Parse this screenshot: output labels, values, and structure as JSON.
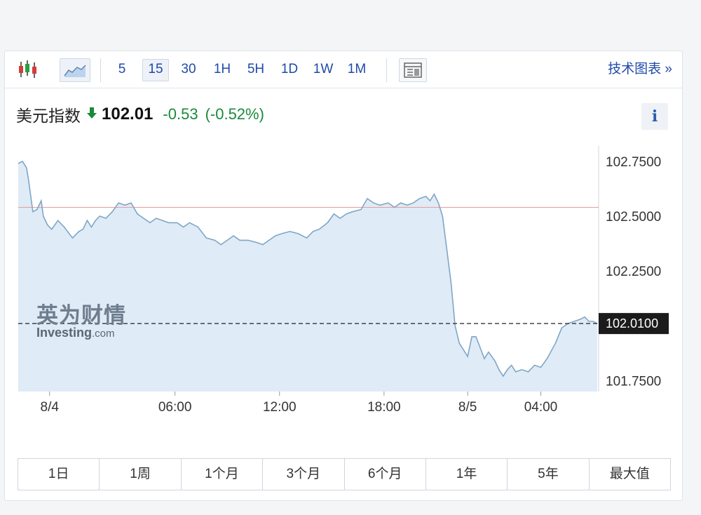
{
  "toolbar": {
    "intervals": [
      "5",
      "15",
      "30",
      "1H",
      "5H",
      "1D",
      "1W",
      "1M"
    ],
    "active_interval": "15",
    "tech_chart_label": "技术图表 »",
    "icons": [
      "candlestick-icon",
      "area-chart-icon",
      "table-icon"
    ]
  },
  "quote": {
    "name": "美元指数",
    "price": "102.01",
    "change": "-0.53",
    "change_pct": "(-0.52%)",
    "direction": "down",
    "info_label": "i"
  },
  "watermark": {
    "cn": "英为财情",
    "en": "Investing",
    "en_suffix": ".com"
  },
  "ranges": [
    "1日",
    "1周",
    "1个月",
    "3个月",
    "6个月",
    "1年",
    "5年",
    "最大值"
  ],
  "colors": {
    "up_green": "#1a8a3c",
    "link_blue": "#1f4aa8",
    "line": "#7fa6c6",
    "area": "#dfebf6",
    "prev_close_line": "#e89a9a"
  },
  "chart_data": {
    "type": "area",
    "title": "",
    "xlabel": "",
    "ylabel": "",
    "ylim": [
      101.7,
      102.82
    ],
    "yticks": [
      101.75,
      102.0,
      102.25,
      102.5,
      102.75
    ],
    "ytick_labels": [
      "101.7500",
      "102.0000",
      "102.2500",
      "102.5000",
      "102.7500"
    ],
    "xticks": [
      "8/4",
      "06:00",
      "12:00",
      "18:00",
      "8/5",
      "04:00"
    ],
    "xtick_positions": [
      1.5,
      7.5,
      12.5,
      17.5,
      21.5,
      25.0
    ],
    "current_value": 102.01,
    "current_label": "102.0100",
    "reference_line": 102.54,
    "grid": false,
    "series": [
      {
        "values": [
          [
            0.0,
            102.74
          ],
          [
            0.2,
            102.75
          ],
          [
            0.4,
            102.72
          ],
          [
            0.5,
            102.66
          ],
          [
            0.7,
            102.52
          ],
          [
            0.9,
            102.53
          ],
          [
            1.1,
            102.57
          ],
          [
            1.2,
            102.5
          ],
          [
            1.4,
            102.46
          ],
          [
            1.6,
            102.44
          ],
          [
            1.9,
            102.48
          ],
          [
            2.2,
            102.45
          ],
          [
            2.6,
            102.4
          ],
          [
            2.9,
            102.43
          ],
          [
            3.1,
            102.44
          ],
          [
            3.3,
            102.48
          ],
          [
            3.5,
            102.45
          ],
          [
            3.7,
            102.48
          ],
          [
            3.9,
            102.5
          ],
          [
            4.2,
            102.49
          ],
          [
            4.5,
            102.52
          ],
          [
            4.8,
            102.56
          ],
          [
            5.1,
            102.55
          ],
          [
            5.4,
            102.56
          ],
          [
            5.7,
            102.51
          ],
          [
            6.0,
            102.49
          ],
          [
            6.3,
            102.47
          ],
          [
            6.6,
            102.49
          ],
          [
            6.9,
            102.48
          ],
          [
            7.2,
            102.47
          ],
          [
            7.6,
            102.47
          ],
          [
            7.9,
            102.45
          ],
          [
            8.2,
            102.47
          ],
          [
            8.6,
            102.45
          ],
          [
            9.0,
            102.4
          ],
          [
            9.4,
            102.39
          ],
          [
            9.7,
            102.37
          ],
          [
            10.0,
            102.39
          ],
          [
            10.3,
            102.41
          ],
          [
            10.6,
            102.39
          ],
          [
            11.0,
            102.39
          ],
          [
            11.4,
            102.38
          ],
          [
            11.7,
            102.37
          ],
          [
            12.0,
            102.39
          ],
          [
            12.3,
            102.41
          ],
          [
            12.6,
            102.42
          ],
          [
            13.0,
            102.43
          ],
          [
            13.4,
            102.42
          ],
          [
            13.8,
            102.4
          ],
          [
            14.1,
            102.43
          ],
          [
            14.4,
            102.44
          ],
          [
            14.8,
            102.47
          ],
          [
            15.1,
            102.51
          ],
          [
            15.4,
            102.49
          ],
          [
            15.7,
            102.51
          ],
          [
            16.0,
            102.52
          ],
          [
            16.4,
            102.53
          ],
          [
            16.7,
            102.58
          ],
          [
            17.0,
            102.56
          ],
          [
            17.3,
            102.55
          ],
          [
            17.7,
            102.56
          ],
          [
            18.0,
            102.54
          ],
          [
            18.3,
            102.56
          ],
          [
            18.6,
            102.55
          ],
          [
            18.9,
            102.56
          ],
          [
            19.2,
            102.58
          ],
          [
            19.5,
            102.59
          ],
          [
            19.7,
            102.57
          ],
          [
            19.9,
            102.6
          ],
          [
            20.1,
            102.56
          ],
          [
            20.3,
            102.5
          ],
          [
            20.5,
            102.35
          ],
          [
            20.7,
            102.2
          ],
          [
            20.9,
            102.0
          ],
          [
            21.1,
            101.92
          ],
          [
            21.3,
            101.89
          ],
          [
            21.5,
            101.86
          ],
          [
            21.7,
            101.95
          ],
          [
            21.9,
            101.95
          ],
          [
            22.1,
            101.9
          ],
          [
            22.3,
            101.85
          ],
          [
            22.5,
            101.88
          ],
          [
            22.8,
            101.84
          ],
          [
            23.0,
            101.8
          ],
          [
            23.2,
            101.77
          ],
          [
            23.4,
            101.8
          ],
          [
            23.6,
            101.82
          ],
          [
            23.8,
            101.79
          ],
          [
            24.1,
            101.8
          ],
          [
            24.4,
            101.79
          ],
          [
            24.7,
            101.82
          ],
          [
            25.0,
            101.81
          ],
          [
            25.3,
            101.85
          ],
          [
            25.7,
            101.92
          ],
          [
            26.0,
            101.99
          ],
          [
            26.3,
            102.01
          ],
          [
            26.6,
            102.02
          ],
          [
            26.9,
            102.03
          ],
          [
            27.1,
            102.04
          ],
          [
            27.3,
            102.02
          ],
          [
            27.5,
            102.02
          ],
          [
            27.7,
            102.01
          ]
        ]
      }
    ]
  }
}
